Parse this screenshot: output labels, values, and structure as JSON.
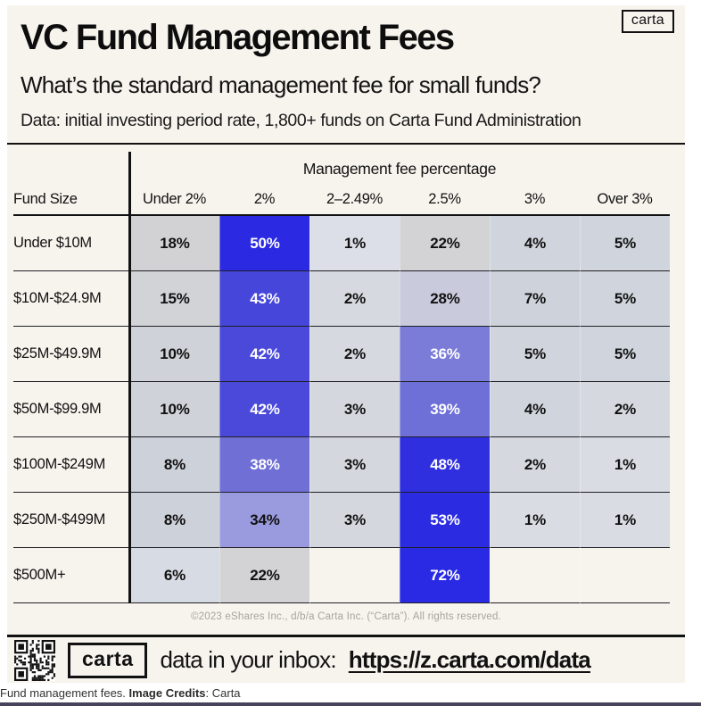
{
  "colors": {
    "page_bg": "#f7f4ee",
    "accent_blue": "#2b2be2",
    "heat_low": "#dcdfe7",
    "line_black": "#111111"
  },
  "header": {
    "title": "VC Fund Management Fees",
    "logo": "carta",
    "subtitle": "What’s the standard management fee for small funds?",
    "data_note": "Data: initial investing period rate, 1,800+ funds on Carta Fund Administration"
  },
  "chart_data": {
    "type": "heatmap",
    "title": "VC Fund Management Fees",
    "subtitle": "What’s the standard management fee for small funds?",
    "note": "Data: initial investing period rate, 1,800+ funds on Carta Fund Administration",
    "group_header": "Management fee percentage",
    "row_header": "Fund Size",
    "columns": [
      "Under 2%",
      "2%",
      "2–2.49%",
      "2.5%",
      "3%",
      "Over 3%"
    ],
    "rows": [
      {
        "label": "Under $10M",
        "cells": [
          {
            "v": "18%",
            "bg": "#d2d2d5",
            "fg": "#111111"
          },
          {
            "v": "50%",
            "bg": "#2b2ae2",
            "fg": "#ffffff"
          },
          {
            "v": "1%",
            "bg": "#dcdfe7",
            "fg": "#111111"
          },
          {
            "v": "22%",
            "bg": "#d3d2d4",
            "fg": "#111111"
          },
          {
            "v": "4%",
            "bg": "#d0d5dd",
            "fg": "#111111"
          },
          {
            "v": "5%",
            "bg": "#d0d5dd",
            "fg": "#111111"
          }
        ]
      },
      {
        "label": "$10M-$24.9M",
        "cells": [
          {
            "v": "15%",
            "bg": "#d2d3d7",
            "fg": "#111111"
          },
          {
            "v": "43%",
            "bg": "#4646da",
            "fg": "#ffffff"
          },
          {
            "v": "2%",
            "bg": "#d6d9df",
            "fg": "#111111"
          },
          {
            "v": "28%",
            "bg": "#c9cadc",
            "fg": "#111111"
          },
          {
            "v": "7%",
            "bg": "#ced3db",
            "fg": "#111111"
          },
          {
            "v": "5%",
            "bg": "#d0d5dd",
            "fg": "#111111"
          }
        ]
      },
      {
        "label": "$25M-$49.9M",
        "cells": [
          {
            "v": "10%",
            "bg": "#cfd2d8",
            "fg": "#111111"
          },
          {
            "v": "42%",
            "bg": "#4a49da",
            "fg": "#ffffff"
          },
          {
            "v": "2%",
            "bg": "#d6d9df",
            "fg": "#111111"
          },
          {
            "v": "36%",
            "bg": "#7b7bd8",
            "fg": "#ffffff"
          },
          {
            "v": "5%",
            "bg": "#d0d5dd",
            "fg": "#111111"
          },
          {
            "v": "5%",
            "bg": "#d0d5dd",
            "fg": "#111111"
          }
        ]
      },
      {
        "label": "$50M-$99.9M",
        "cells": [
          {
            "v": "10%",
            "bg": "#cfd2d8",
            "fg": "#111111"
          },
          {
            "v": "42%",
            "bg": "#4a49da",
            "fg": "#ffffff"
          },
          {
            "v": "3%",
            "bg": "#d4d7dd",
            "fg": "#111111"
          },
          {
            "v": "39%",
            "bg": "#6e70d8",
            "fg": "#ffffff"
          },
          {
            "v": "4%",
            "bg": "#d0d5dd",
            "fg": "#111111"
          },
          {
            "v": "2%",
            "bg": "#d5d8de",
            "fg": "#111111"
          }
        ]
      },
      {
        "label": "$100M-$249M",
        "cells": [
          {
            "v": "8%",
            "bg": "#cdd1da",
            "fg": "#111111"
          },
          {
            "v": "38%",
            "bg": "#6f6fd6",
            "fg": "#ffffff"
          },
          {
            "v": "3%",
            "bg": "#d4d7dd",
            "fg": "#111111"
          },
          {
            "v": "48%",
            "bg": "#2f2fe0",
            "fg": "#ffffff"
          },
          {
            "v": "2%",
            "bg": "#d5d8de",
            "fg": "#111111"
          },
          {
            "v": "1%",
            "bg": "#d9dce3",
            "fg": "#111111"
          }
        ]
      },
      {
        "label": "$250M-$499M",
        "cells": [
          {
            "v": "8%",
            "bg": "#cdd1da",
            "fg": "#111111"
          },
          {
            "v": "34%",
            "bg": "#9a9ade",
            "fg": "#111111"
          },
          {
            "v": "3%",
            "bg": "#d4d7dd",
            "fg": "#111111"
          },
          {
            "v": "53%",
            "bg": "#2b2be2",
            "fg": "#ffffff"
          },
          {
            "v": "1%",
            "bg": "#d9dce3",
            "fg": "#111111"
          },
          {
            "v": "1%",
            "bg": "#d9dce3",
            "fg": "#111111"
          }
        ]
      },
      {
        "label": "$500M+",
        "cells": [
          {
            "v": "6%",
            "bg": "#d7dbe3",
            "fg": "#111111"
          },
          {
            "v": "22%",
            "bg": "#d3d2d4",
            "fg": "#111111"
          },
          {
            "v": "",
            "bg": null,
            "fg": null
          },
          {
            "v": "72%",
            "bg": "#2a2ae4",
            "fg": "#ffffff"
          },
          {
            "v": "",
            "bg": null,
            "fg": null
          },
          {
            "v": "",
            "bg": null,
            "fg": null
          }
        ]
      }
    ]
  },
  "footer": {
    "copyright": "©2023 eShares Inc., d/b/a Carta Inc. (“Carta”). All rights reserved.",
    "logo": "carta",
    "cta_text": "data in your inbox:",
    "cta_link": "https://z.carta.com/data"
  },
  "caption": {
    "text": "Fund management fees. ",
    "credits_label": "Image Credits",
    "separator": ": ",
    "credits_value": "Carta"
  }
}
